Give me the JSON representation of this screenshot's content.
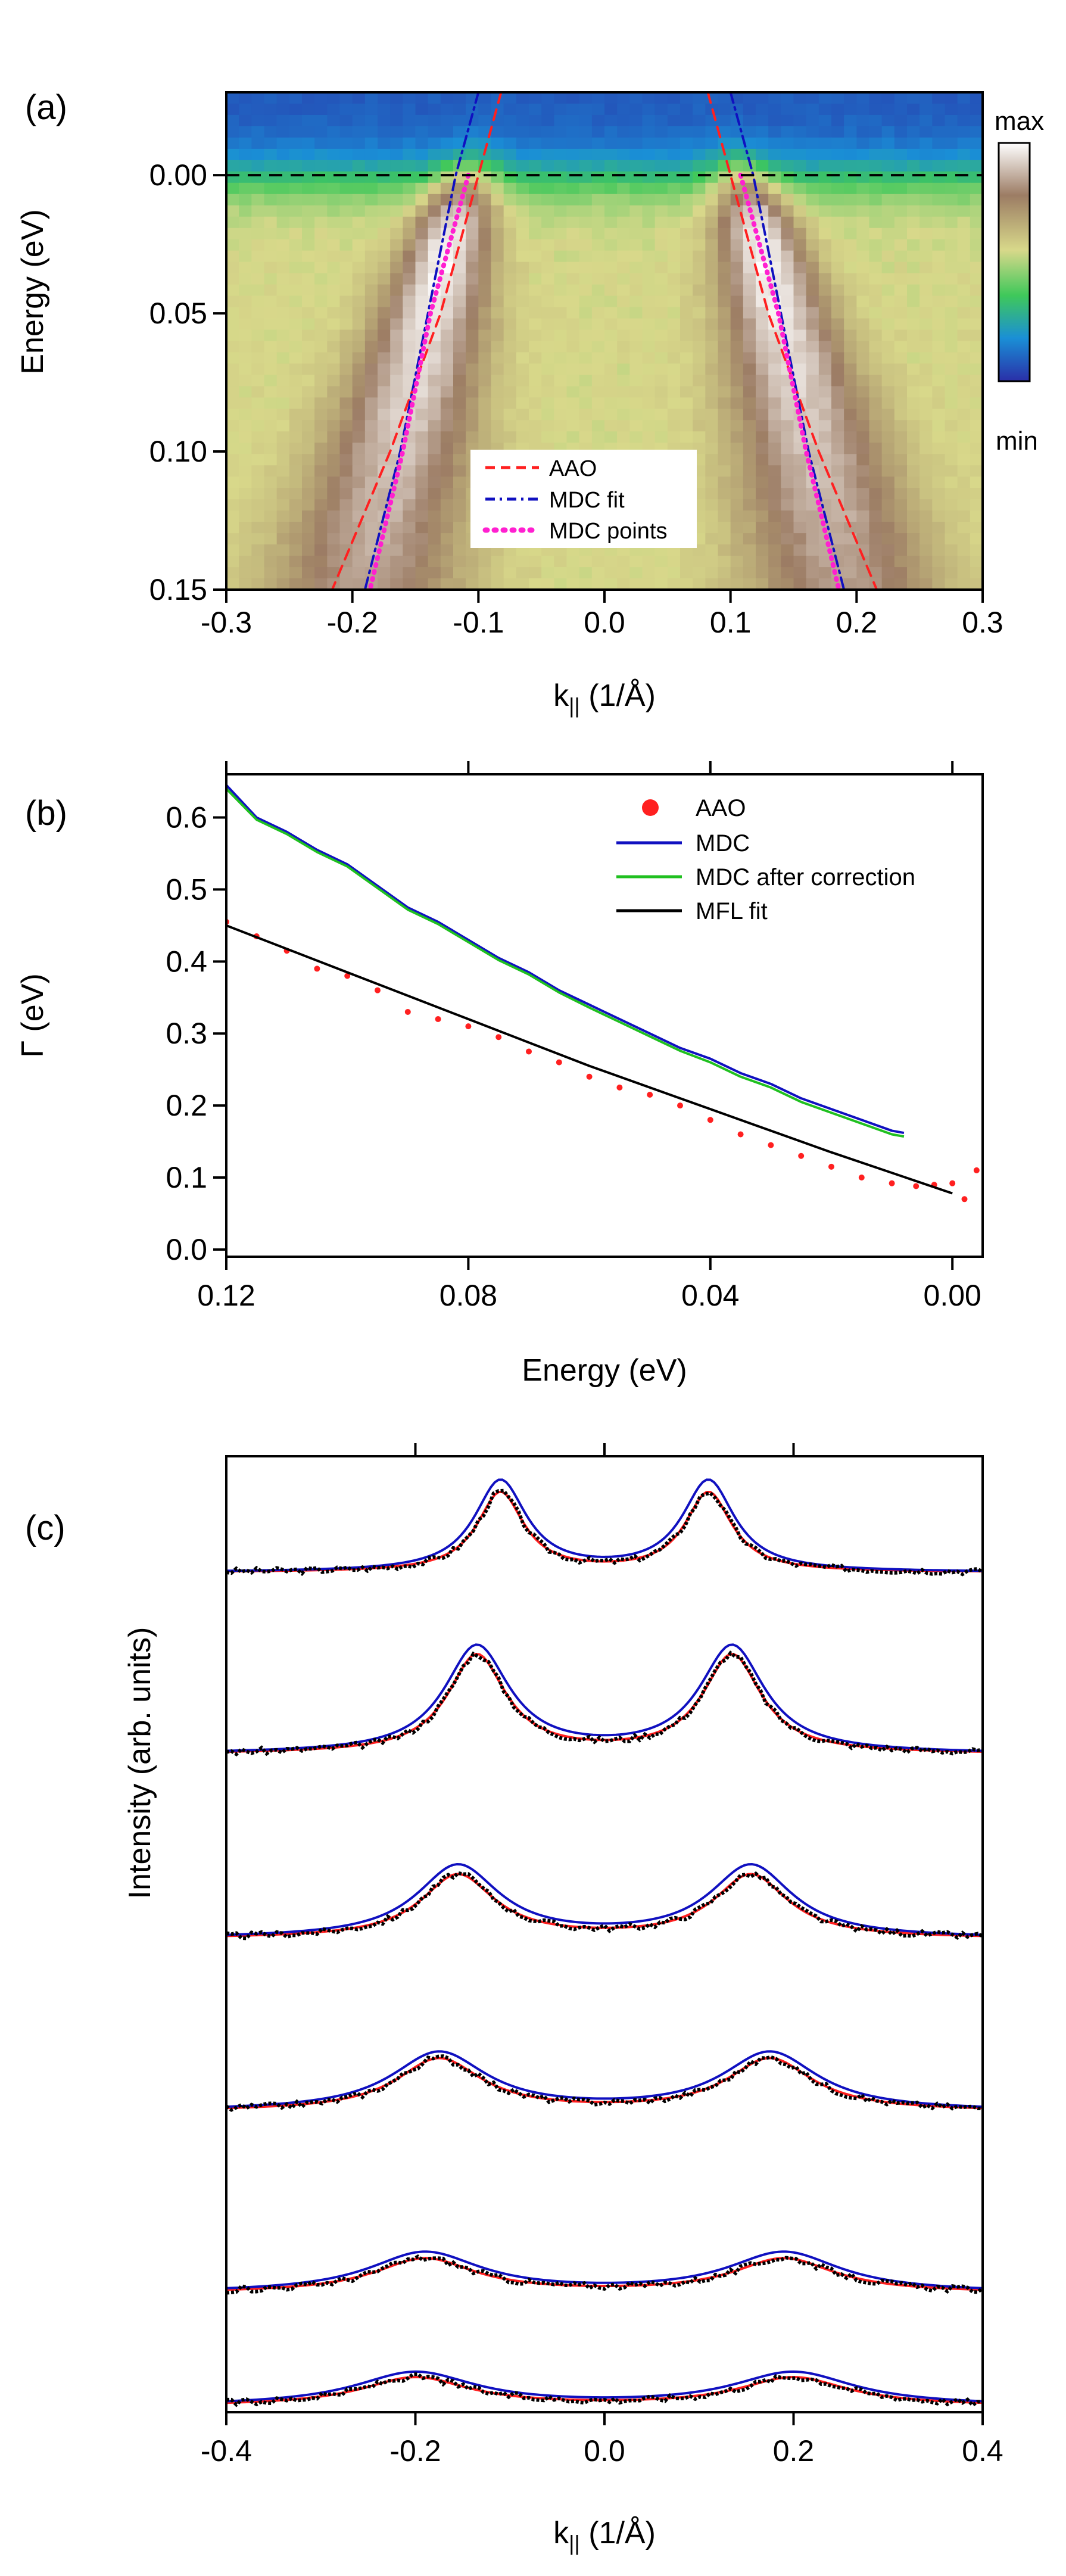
{
  "chart_data": [
    {
      "panel": "(a)",
      "type": "heatmap",
      "title": "",
      "xlabel": "k",
      "xlabel_sub": "||",
      "xlabel_unit": " (1/Å)",
      "ylabel": "Energy (eV)",
      "xlim": [
        -0.3,
        0.3
      ],
      "ylim": [
        -0.03,
        0.15
      ],
      "xticks": [
        -0.3,
        -0.2,
        -0.1,
        0.0,
        0.1,
        0.2,
        0.3
      ],
      "xtick_labels": [
        "-0.3",
        "-0.2",
        "-0.1",
        "0.0",
        "0.1",
        "0.2",
        "0.3"
      ],
      "yticks": [
        0.0,
        0.05,
        0.1,
        0.15
      ],
      "ytick_labels": [
        "0.00",
        "0.05",
        "0.10",
        "0.15"
      ],
      "fermi_level": 0.0,
      "colorbar": {
        "max_label": "max",
        "min_label": "min",
        "colors": [
          "#2a2fa8",
          "#1a8fd6",
          "#3fc85a",
          "#d8d88a",
          "#9c7c64",
          "#ffffff"
        ]
      },
      "series": [
        {
          "name": "AAO",
          "style": "dashed",
          "color": "#ff2020",
          "left": [
            [
              -0.082,
              -0.03
            ],
            [
              -0.1,
              0.0
            ],
            [
              -0.13,
              0.05
            ],
            [
              -0.17,
              0.1
            ],
            [
              -0.216,
              0.15
            ]
          ],
          "right": [
            [
              0.082,
              -0.03
            ],
            [
              0.1,
              0.0
            ],
            [
              0.13,
              0.05
            ],
            [
              0.17,
              0.1
            ],
            [
              0.216,
              0.15
            ]
          ]
        },
        {
          "name": "MDC fit",
          "style": "dashdot",
          "color": "#1010c0",
          "left": [
            [
              -0.1,
              -0.03
            ],
            [
              -0.118,
              0.0
            ],
            [
              -0.14,
              0.05
            ],
            [
              -0.162,
              0.1
            ],
            [
              -0.19,
              0.15
            ]
          ],
          "right": [
            [
              0.1,
              -0.03
            ],
            [
              0.118,
              0.0
            ],
            [
              0.14,
              0.05
            ],
            [
              0.162,
              0.1
            ],
            [
              0.19,
              0.15
            ]
          ]
        },
        {
          "name": "MDC points",
          "style": "dotted",
          "color": "#ff20d0",
          "left": [
            [
              -0.108,
              0.0
            ],
            [
              -0.12,
              0.02
            ],
            [
              -0.138,
              0.05
            ],
            [
              -0.16,
              0.1
            ],
            [
              -0.186,
              0.15
            ]
          ],
          "right": [
            [
              0.108,
              0.0
            ],
            [
              0.12,
              0.02
            ],
            [
              0.138,
              0.05
            ],
            [
              0.16,
              0.1
            ],
            [
              0.186,
              0.15
            ]
          ]
        }
      ],
      "legend": [
        "AAO",
        "MDC fit",
        "MDC points"
      ],
      "legend_position": "bottom-center"
    },
    {
      "panel": "(b)",
      "type": "line",
      "title": "",
      "xlabel": "Energy (eV)",
      "ylabel": "Γ (eV)",
      "xlim": [
        0.12,
        -0.005
      ],
      "ylim": [
        -0.01,
        0.66
      ],
      "xticks": [
        0.12,
        0.08,
        0.04,
        0.0
      ],
      "xtick_labels": [
        "0.12",
        "0.08",
        "0.04",
        "0.00"
      ],
      "yticks": [
        0.0,
        0.1,
        0.2,
        0.3,
        0.4,
        0.5,
        0.6
      ],
      "ytick_labels": [
        "0.0",
        "0.1",
        "0.2",
        "0.3",
        "0.4",
        "0.5",
        "0.6"
      ],
      "series": [
        {
          "name": "AAO",
          "type": "scatter",
          "color": "#ff2020",
          "x": [
            0.12,
            0.115,
            0.11,
            0.105,
            0.1,
            0.095,
            0.09,
            0.085,
            0.08,
            0.075,
            0.07,
            0.065,
            0.06,
            0.055,
            0.05,
            0.045,
            0.04,
            0.035,
            0.03,
            0.025,
            0.02,
            0.015,
            0.01,
            0.006,
            0.003,
            0.0,
            -0.002,
            -0.004
          ],
          "y": [
            0.455,
            0.435,
            0.415,
            0.39,
            0.38,
            0.36,
            0.33,
            0.32,
            0.31,
            0.295,
            0.275,
            0.26,
            0.24,
            0.225,
            0.215,
            0.2,
            0.18,
            0.16,
            0.145,
            0.13,
            0.115,
            0.1,
            0.092,
            0.088,
            0.09,
            0.092,
            0.07,
            0.11
          ]
        },
        {
          "name": "MDC",
          "type": "line",
          "color": "#1010c0",
          "x": [
            0.12,
            0.115,
            0.11,
            0.105,
            0.1,
            0.095,
            0.09,
            0.085,
            0.08,
            0.075,
            0.07,
            0.065,
            0.06,
            0.055,
            0.05,
            0.045,
            0.04,
            0.035,
            0.03,
            0.025,
            0.02,
            0.015,
            0.01,
            0.008
          ],
          "y": [
            0.645,
            0.6,
            0.58,
            0.555,
            0.535,
            0.505,
            0.475,
            0.455,
            0.43,
            0.405,
            0.385,
            0.36,
            0.34,
            0.32,
            0.3,
            0.28,
            0.265,
            0.245,
            0.23,
            0.21,
            0.195,
            0.18,
            0.165,
            0.162
          ]
        },
        {
          "name": "MDC after correction",
          "type": "line",
          "color": "#20c020",
          "x": [
            0.12,
            0.115,
            0.11,
            0.105,
            0.1,
            0.095,
            0.09,
            0.085,
            0.08,
            0.075,
            0.07,
            0.065,
            0.06,
            0.055,
            0.05,
            0.045,
            0.04,
            0.035,
            0.03,
            0.025,
            0.02,
            0.015,
            0.01,
            0.008
          ],
          "y": [
            0.64,
            0.597,
            0.577,
            0.552,
            0.532,
            0.502,
            0.472,
            0.452,
            0.427,
            0.402,
            0.382,
            0.357,
            0.336,
            0.316,
            0.296,
            0.276,
            0.26,
            0.24,
            0.225,
            0.205,
            0.19,
            0.175,
            0.16,
            0.157
          ]
        },
        {
          "name": "MFL fit",
          "type": "line",
          "color": "#000000",
          "x": [
            0.12,
            0.1,
            0.08,
            0.06,
            0.04,
            0.02,
            0.0
          ],
          "y": [
            0.45,
            0.385,
            0.32,
            0.255,
            0.195,
            0.135,
            0.078
          ]
        }
      ],
      "legend": [
        "AAO",
        "MDC",
        "MDC after correction",
        "MFL fit"
      ],
      "legend_position": "top-right"
    },
    {
      "panel": "(c)",
      "type": "line",
      "title": "",
      "xlabel": "k",
      "xlabel_sub": "||",
      "xlabel_unit": " (1/Å)",
      "ylabel": "Intensity (arb. units)",
      "xlim": [
        -0.4,
        0.4
      ],
      "xticks": [
        -0.4,
        -0.2,
        0.0,
        0.2,
        0.4
      ],
      "xtick_labels": [
        "-0.4",
        "-0.2",
        "0.0",
        "0.2",
        "0.4"
      ],
      "description": "six stacked MDC curves: data (black), AAO fit (red), MDC fit (blue)",
      "curves": [
        {
          "offset": 5,
          "peak_k": 0.11,
          "width": 0.06,
          "height": 1.0,
          "bottom": 0.5
        },
        {
          "offset": 4,
          "peak_k": 0.135,
          "width": 0.075,
          "height": 1.0,
          "bottom": 0.38
        },
        {
          "offset": 3,
          "peak_k": 0.155,
          "width": 0.095,
          "height": 0.8,
          "bottom": 0.5
        },
        {
          "offset": 2,
          "peak_k": 0.175,
          "width": 0.11,
          "height": 0.6,
          "bottom": 0.45
        },
        {
          "offset": 1,
          "peak_k": 0.19,
          "width": 0.13,
          "height": 0.48,
          "bottom": 0.55
        },
        {
          "offset": 0,
          "peak_k": 0.2,
          "width": 0.14,
          "height": 0.4,
          "bottom": 0.55
        }
      ],
      "series": [
        {
          "name": "data",
          "color": "#000000"
        },
        {
          "name": "AAO fit",
          "color": "#ff2020"
        },
        {
          "name": "MDC fit",
          "color": "#1010c0"
        }
      ]
    }
  ]
}
